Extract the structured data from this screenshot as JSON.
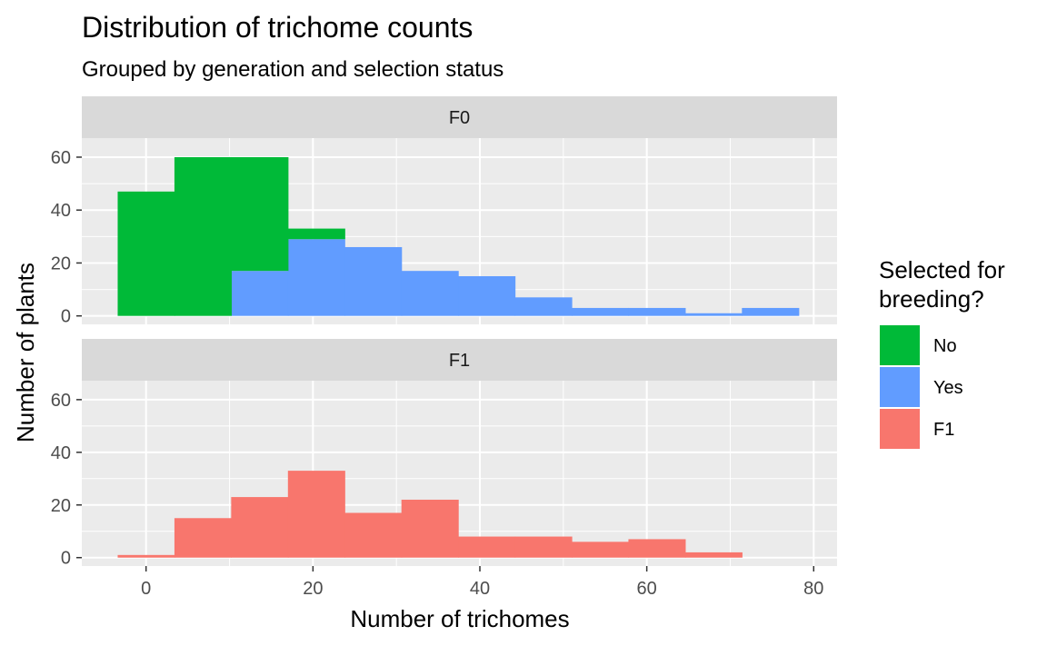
{
  "chart_data": {
    "type": "bar",
    "title": "Distribution of trichome counts",
    "subtitle": "Grouped by generation and selection status",
    "xlabel": "Number of trichomes",
    "ylabel": "Number of plants",
    "xlim": [
      -3.4,
      78.4
    ],
    "ylim": [
      0,
      64
    ],
    "x_ticks": [
      0,
      20,
      40,
      60,
      80
    ],
    "y_ticks": [
      0,
      20,
      40,
      60
    ],
    "bin_edges": [
      -3.4,
      3.4,
      10.2,
      17.0,
      23.8,
      30.6,
      37.4,
      44.2,
      51.0,
      57.8,
      64.6,
      71.4,
      78.2
    ],
    "stacked": true,
    "grid": true,
    "legend": {
      "title_lines": [
        "Selected for",
        "breeding?"
      ],
      "position": "right",
      "entries": [
        {
          "label": "No",
          "color": "#00BA38"
        },
        {
          "label": "Yes",
          "color": "#619CFF"
        },
        {
          "label": "F1",
          "color": "#F8766D"
        }
      ]
    },
    "panels": [
      {
        "label": "F0",
        "series": [
          {
            "name": "Yes",
            "color": "#619CFF",
            "values": [
              0,
              0,
              17,
              29,
              26,
              17,
              15,
              7,
              3,
              3,
              1,
              3
            ]
          },
          {
            "name": "No",
            "color": "#00BA38",
            "values": [
              47,
              60,
              43,
              4,
              0,
              0,
              0,
              0,
              0,
              0,
              0,
              0
            ]
          }
        ]
      },
      {
        "label": "F1",
        "series": [
          {
            "name": "F1",
            "color": "#F8766D",
            "values": [
              1,
              15,
              23,
              33,
              17,
              22,
              8,
              8,
              6,
              7,
              2,
              0
            ]
          }
        ]
      }
    ]
  }
}
